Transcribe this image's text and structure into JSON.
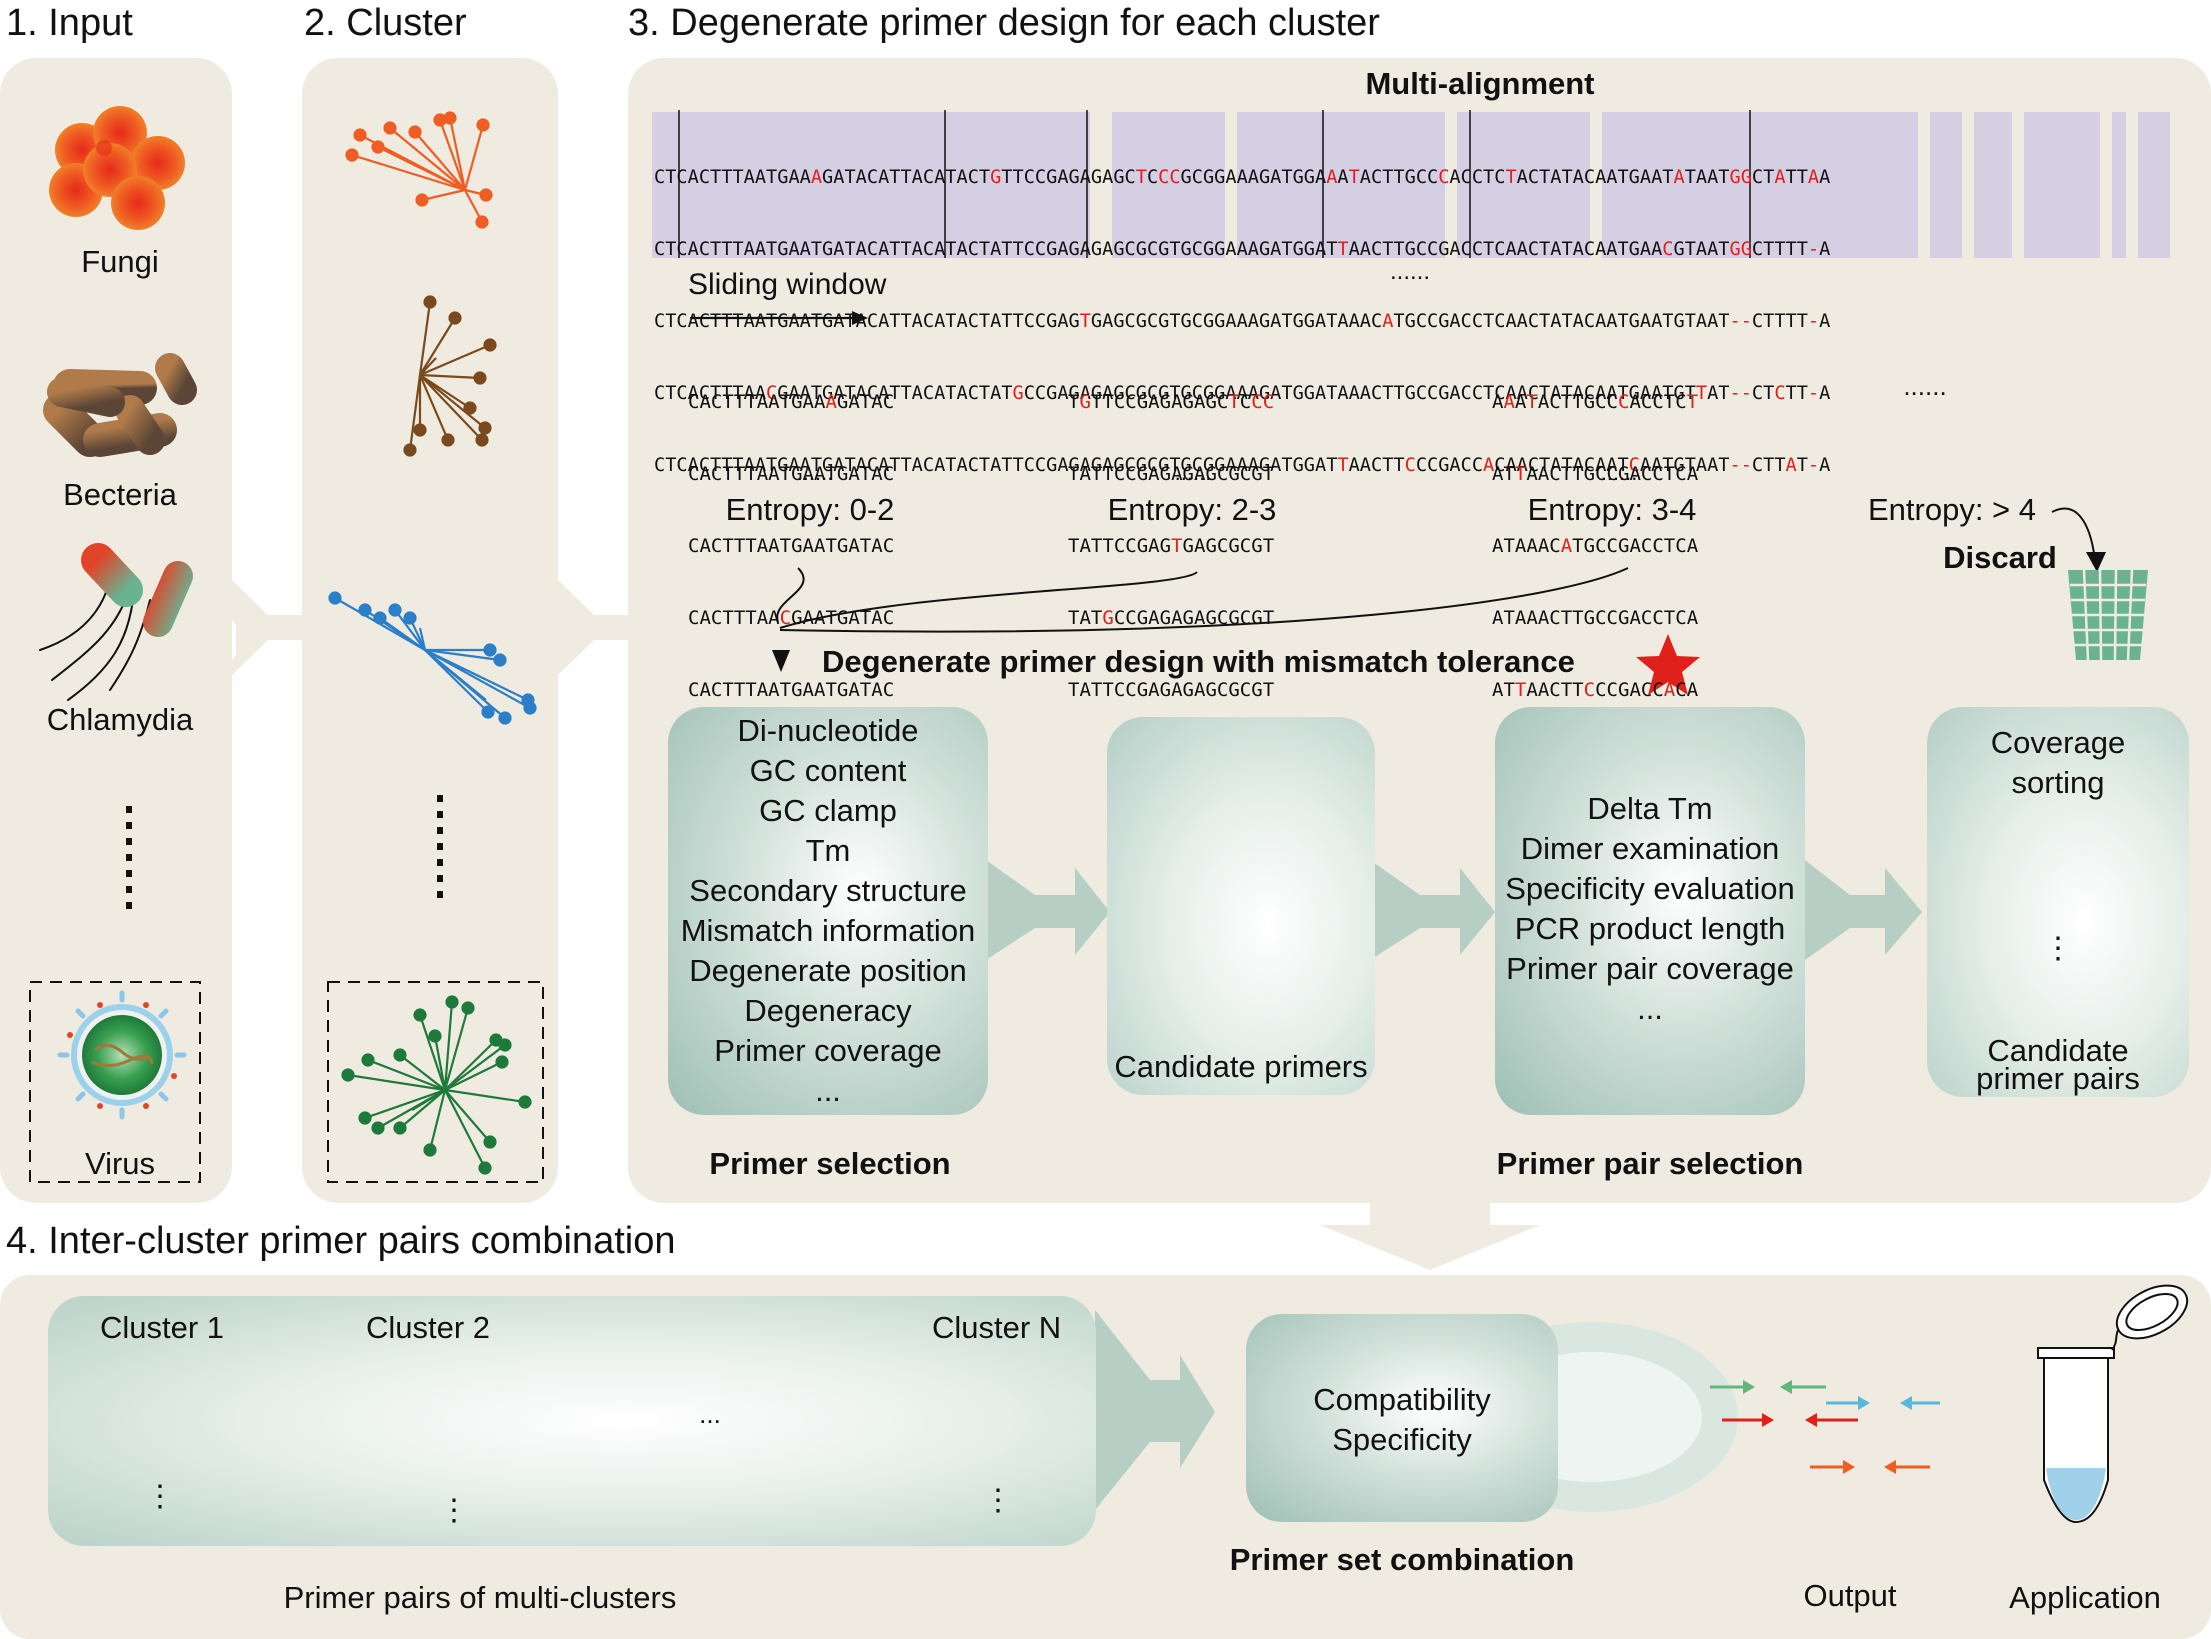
{
  "sections": {
    "input": "1. Input",
    "cluster": "2. Cluster",
    "design": "3. Degenerate primer design for each cluster",
    "combination": "4. Inter-cluster primer pairs combination"
  },
  "input_items": [
    "Fungi",
    "Becteria",
    "Chlamydia",
    "Virus"
  ],
  "alignment": {
    "title": "Multi-alignment",
    "sequences": [
      "CTCACTTTAATGAAAGATACATTACATACTGTTCCGAGAGAGCTCCCGCGGAAAGATGGAAATACTTGCCCACCTCTACTATACAATGAATATAATGGCTATTAA",
      "CTCACTTTAATGAATGATACATTACATACTATTCCGAGAGAGCGCGTGCGGAAAGATGGATTAACTTGCCGACCTCAACTATACAATGAACGTAATGGCTTTT-A",
      "CTCACTTTAATGAATGATACATTACATACTATTCCGAGTGAGCGCGTGCGGAAAGATGGATAAACATGCCGACCTCAACTATACAATGAATGTAAT--CTTTT-A",
      "CTCACTTTAACGAATGATACATTACATACTATGCCGAGAGAGCGCGTGCGGAAAGATGGATAAACTTGCCGACCTCAACTATACAATGAATGTTAT--CTCTT-A",
      "CTCACTTTAATGAATGATACATTACATACTATTCCGAGAGAGCGCGTGCGGAAAGATGGATTAACTTCCCGACCACAACTATACAATCAATGTAAT--CTTAT-A"
    ],
    "ellipsis": "......",
    "sliding_window": "Sliding window"
  },
  "windows": [
    {
      "rows": [
        "CACTTTAATGAAAGATAC",
        "CACTTTAATGAATGATAC",
        "CACTTTAATGAATGATAC",
        "CACTTTAACGAATGATAC",
        "CACTTTAATGAATGATAC"
      ],
      "dots": "......",
      "entropy": "Entropy: 0-2"
    },
    {
      "rows": [
        "TGTTCCGAGAGAGCTCCC",
        "TATTCCGAGAGAGCGCGT",
        "TATTCCGAGTGAGCGCGT",
        "TATGCCGAGAGAGCGCGT",
        "TATTCCGAGAGAGCGCGT"
      ],
      "dots": "......",
      "entropy": "Entropy: 2-3"
    },
    {
      "rows": [
        "AAATACTTGCCCACCTCT",
        "ATTAACTTGCCGACCTCA",
        "ATAAACATGCCGACCTCA",
        "ATAAACTTGCCGACCTCA",
        "ATTAACTTCCCGACCACA"
      ],
      "dots": "......",
      "entropy": "Entropy: 3-4"
    }
  ],
  "window_more": "......",
  "entropy_discard": "Entropy: > 4",
  "discard": "Discard",
  "mismatch_title": "Degenerate primer design with mismatch tolerance",
  "primer_selection": {
    "criteria": [
      "Di-nucleotide",
      "GC content",
      "GC clamp",
      "Tm",
      "Secondary structure",
      "Mismatch information",
      "Degenerate position",
      "Degeneracy",
      "Primer coverage",
      "..."
    ],
    "label": "Primer selection"
  },
  "candidate_primers": "Candidate primers",
  "pair_selection": {
    "criteria": [
      "Delta Tm",
      "Dimer examination",
      "Specificity evaluation",
      "PCR product length",
      "Primer pair coverage",
      "..."
    ],
    "label": "Primer pair selection"
  },
  "coverage": {
    "title": [
      "Coverage",
      "sorting"
    ],
    "label": [
      "Candidate",
      "primer pairs"
    ],
    "dots": "⋮"
  },
  "clusters": [
    "Cluster 1",
    "Cluster 2",
    "Cluster N"
  ],
  "cluster_ellipsis": "...",
  "cluster_vdots": "⋮",
  "multi_label": "Primer pairs of multi-clusters",
  "combination": {
    "criteria": [
      "Compatibility",
      "Specificity"
    ],
    "label": "Primer set combination"
  },
  "output": "Output",
  "application": "Application",
  "colors": {
    "panel": "#efebe0",
    "alignment_shade": "#d3cde3",
    "fungi": "#e87a1e",
    "cluster_orange": "#ef5d22",
    "cluster_brown": "#7a4a1e",
    "cluster_blue": "#2a7fc8",
    "cluster_green": "#1e7a3a",
    "primer_green": "#62b57c",
    "primer_orange": "#ec8459",
    "primer_blue": "#5ab6dd",
    "primer_red": "#e0201a",
    "mismatch": "#e0201a",
    "trash": "#6ab391"
  }
}
